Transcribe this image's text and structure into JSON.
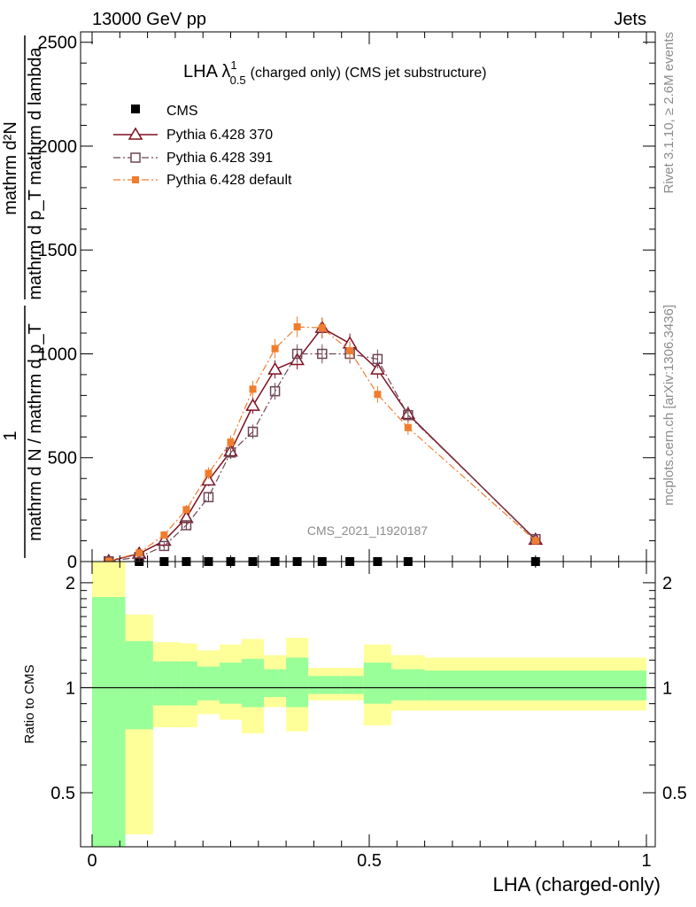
{
  "header": {
    "left": "13000 GeV pp",
    "right": "Jets",
    "side_rivet": "Rivet 3.1.10, ≥ 2.6M events",
    "side_mcplots": "mcplots.cern.ch [arXiv:1306.3436]",
    "watermark": "CMS_2021_I1920187"
  },
  "chart_data": [
    {
      "type": "line",
      "title_main": "LHA λ",
      "title_sup": "1",
      "title_sub": "0.5",
      "title_rest": "(charged only) (CMS jet substructure)",
      "ylabel": "1 / mathrm d N / mathrm d p_T mathrm d N / mathrm d p_T mathrm d lambda",
      "ylabel_num": "1",
      "ylabel_den": "mathrm d N / mathrm d p_T",
      "ylabel_top_num": "mathrm d²N",
      "ylabel_top_den": "mathrm d p_T mathrm d lambda",
      "xlim": [
        -0.05,
        1.0
      ],
      "ylim": [
        0,
        2550
      ],
      "xticks": [
        0,
        0.5,
        1
      ],
      "xtick_labels": [
        "0",
        "0.5",
        "1"
      ],
      "yticks": [
        0,
        500,
        1000,
        1500,
        2000,
        2500
      ],
      "ytick_labels": [
        "0",
        "500",
        "1000",
        "1500",
        "2000",
        "2500"
      ],
      "x": [
        0.03,
        0.085,
        0.13,
        0.17,
        0.21,
        0.25,
        0.29,
        0.33,
        0.37,
        0.415,
        0.465,
        0.515,
        0.57,
        0.8
      ],
      "series": [
        {
          "name": "CMS",
          "marker": "square-filled",
          "color": "#000000",
          "values": [
            0,
            0,
            0,
            0,
            0,
            0,
            0,
            0,
            0,
            0,
            0,
            0,
            0,
            0
          ]
        },
        {
          "name": "Pythia 6.428 370",
          "marker": "triangle-open",
          "color": "#7f1020",
          "dash": "solid",
          "values": [
            2,
            38,
            100,
            210,
            390,
            530,
            750,
            925,
            970,
            1125,
            1050,
            925,
            710,
            105
          ]
        },
        {
          "name": "Pythia 6.428 391",
          "marker": "square-open",
          "color": "#6e4656",
          "dash": "dashdot",
          "values": [
            1,
            22,
            75,
            175,
            310,
            525,
            625,
            820,
            1000,
            1000,
            1000,
            975,
            705,
            108
          ]
        },
        {
          "name": "Pythia 6.428 default",
          "marker": "square-filled-small",
          "color": "#f07d2d",
          "dash": "dashdot",
          "values": [
            2,
            42,
            128,
            250,
            425,
            575,
            830,
            1025,
            1130,
            1125,
            1015,
            805,
            645,
            100
          ]
        }
      ]
    },
    {
      "type": "area",
      "ylabel": "Ratio to CMS",
      "xlabel": "LHA (charged-only)",
      "ylim": [
        0.35,
        2.3
      ],
      "yticks": [
        0.5,
        1,
        2
      ],
      "ytick_labels": [
        "0.5",
        "1",
        "2"
      ],
      "reference_line": 1,
      "bin_edges": [
        0,
        0.06,
        0.11,
        0.16,
        0.19,
        0.23,
        0.27,
        0.31,
        0.35,
        0.39,
        0.45,
        0.49,
        0.54,
        0.6,
        1.0
      ],
      "band_yellow_upper": [
        2.4,
        1.62,
        1.35,
        1.34,
        1.28,
        1.33,
        1.38,
        1.24,
        1.39,
        1.14,
        1.14,
        1.33,
        1.24,
        1.22
      ],
      "band_yellow_lower": [
        0.3,
        0.38,
        0.77,
        0.77,
        0.84,
        0.81,
        0.74,
        0.88,
        0.75,
        0.92,
        0.92,
        0.78,
        0.86,
        0.86
      ],
      "band_green_upper": [
        1.82,
        1.36,
        1.19,
        1.19,
        1.15,
        1.18,
        1.21,
        1.13,
        1.22,
        1.08,
        1.08,
        1.18,
        1.13,
        1.12
      ],
      "band_green_lower": [
        0.3,
        0.76,
        0.89,
        0.89,
        0.92,
        0.9,
        0.88,
        0.94,
        0.88,
        0.96,
        0.96,
        0.9,
        0.92,
        0.92
      ],
      "band_yellow_color": "#ffff99",
      "band_green_color": "#99ff99"
    }
  ]
}
